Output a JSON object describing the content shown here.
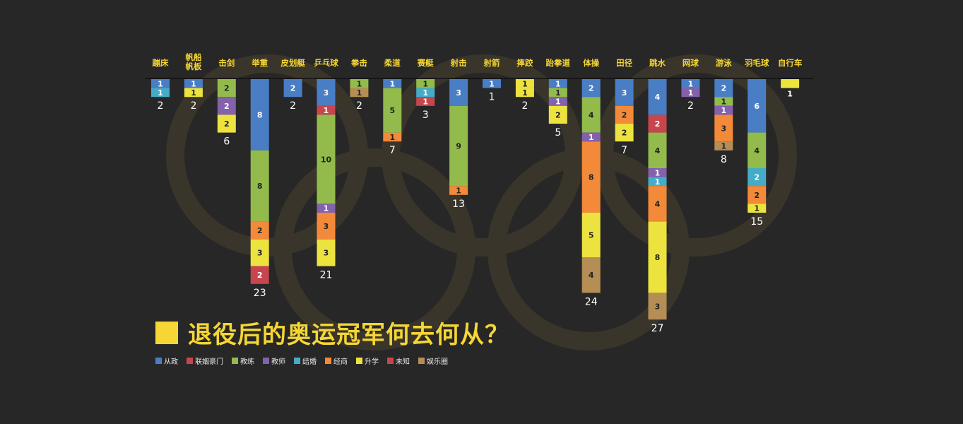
{
  "chart_data": {
    "type": "bar",
    "stacked": true,
    "orientation": "downward",
    "title": "退役后的奥运冠军何去何从？",
    "categories": [
      "蹦床",
      "帆船帆板",
      "击剑",
      "举重",
      "皮划艇",
      "乒乓球",
      "拳击",
      "柔道",
      "赛艇",
      "射击",
      "射箭",
      "摔跤",
      "跆拳道",
      "体操",
      "田径",
      "跳水",
      "网球",
      "游泳",
      "羽毛球",
      "自行车"
    ],
    "category_labels": [
      [
        "蹦床"
      ],
      [
        "帆船",
        "帆板"
      ],
      [
        "击剑"
      ],
      [
        "举重"
      ],
      [
        "皮划艇"
      ],
      [
        "乒乓球"
      ],
      [
        "拳击"
      ],
      [
        "柔道"
      ],
      [
        "赛艇"
      ],
      [
        "射击"
      ],
      [
        "射箭"
      ],
      [
        "摔跤"
      ],
      [
        "跆拳道"
      ],
      [
        "体操"
      ],
      [
        "田径"
      ],
      [
        "跳水"
      ],
      [
        "网球"
      ],
      [
        "游泳"
      ],
      [
        "羽毛球"
      ],
      [
        "自行车"
      ]
    ],
    "series": [
      {
        "name": "从政",
        "color": "#4a7ec4"
      },
      {
        "name": "联姻豪门",
        "color": "#c7464e"
      },
      {
        "name": "教练",
        "color": "#93bb4c"
      },
      {
        "name": "教师",
        "color": "#8460ad"
      },
      {
        "name": "结婚",
        "color": "#45acc7"
      },
      {
        "name": "经商",
        "color": "#f38a3a"
      },
      {
        "name": "升学",
        "color": "#ede33f"
      },
      {
        "name": "未知",
        "color": "#c7464e"
      },
      {
        "name": "娱乐圈",
        "color": "#b48e55"
      }
    ],
    "stacks": [
      {
        "segments": [
          {
            "s": 0,
            "v": 1
          },
          {
            "s": 4,
            "v": 1
          }
        ],
        "total": "2"
      },
      {
        "segments": [
          {
            "s": 0,
            "v": 1
          },
          {
            "s": 6,
            "v": 1
          }
        ],
        "total": "2"
      },
      {
        "segments": [
          {
            "s": 2,
            "v": 2
          },
          {
            "s": 3,
            "v": 2
          },
          {
            "s": 6,
            "v": 2
          }
        ],
        "total": "6"
      },
      {
        "segments": [
          {
            "s": 0,
            "v": 8
          },
          {
            "s": 2,
            "v": 8
          },
          {
            "s": 5,
            "v": 2
          },
          {
            "s": 6,
            "v": 3
          },
          {
            "s": 7,
            "v": 2
          }
        ],
        "total": "23"
      },
      {
        "segments": [
          {
            "s": 0,
            "v": 2
          }
        ],
        "total": "2"
      },
      {
        "segments": [
          {
            "s": 0,
            "v": 3
          },
          {
            "s": 1,
            "v": 1
          },
          {
            "s": 2,
            "v": 10
          },
          {
            "s": 3,
            "v": 1
          },
          {
            "s": 5,
            "v": 3
          },
          {
            "s": 6,
            "v": 3
          }
        ],
        "total": "21"
      },
      {
        "segments": [
          {
            "s": 2,
            "v": 1
          },
          {
            "s": 8,
            "v": 1
          }
        ],
        "total": "2"
      },
      {
        "segments": [
          {
            "s": 0,
            "v": 1
          },
          {
            "s": 2,
            "v": 5
          },
          {
            "s": 5,
            "v": 1
          }
        ],
        "total": "7"
      },
      {
        "segments": [
          {
            "s": 2,
            "v": 1
          },
          {
            "s": 4,
            "v": 1
          },
          {
            "s": 7,
            "v": 1
          }
        ],
        "total": "3"
      },
      {
        "segments": [
          {
            "s": 0,
            "v": 3
          },
          {
            "s": 2,
            "v": 9
          },
          {
            "s": 5,
            "v": 1
          }
        ],
        "total": "13"
      },
      {
        "segments": [
          {
            "s": 0,
            "v": 1
          }
        ],
        "total": "1"
      },
      {
        "segments": [
          {
            "s": 6,
            "v": 1
          },
          {
            "s": 6,
            "v": 1
          }
        ],
        "total": "2"
      },
      {
        "segments": [
          {
            "s": 0,
            "v": 1
          },
          {
            "s": 2,
            "v": 1
          },
          {
            "s": 3,
            "v": 1
          },
          {
            "s": 6,
            "v": 2
          }
        ],
        "total": "5"
      },
      {
        "segments": [
          {
            "s": 0,
            "v": 2
          },
          {
            "s": 2,
            "v": 4
          },
          {
            "s": 3,
            "v": 1
          },
          {
            "s": 5,
            "v": 8
          },
          {
            "s": 6,
            "v": 5
          },
          {
            "s": 8,
            "v": 4
          }
        ],
        "total": "24"
      },
      {
        "segments": [
          {
            "s": 0,
            "v": 3
          },
          {
            "s": 5,
            "v": 2
          },
          {
            "s": 6,
            "v": 2
          }
        ],
        "total": "7"
      },
      {
        "segments": [
          {
            "s": 0,
            "v": 4
          },
          {
            "s": 1,
            "v": 2
          },
          {
            "s": 2,
            "v": 4
          },
          {
            "s": 3,
            "v": 1
          },
          {
            "s": 4,
            "v": 1
          },
          {
            "s": 5,
            "v": 4
          },
          {
            "s": 6,
            "v": 8
          },
          {
            "s": 8,
            "v": 3
          }
        ],
        "total": "27"
      },
      {
        "segments": [
          {
            "s": 0,
            "v": 1
          },
          {
            "s": 3,
            "v": 1
          }
        ],
        "total": "2"
      },
      {
        "segments": [
          {
            "s": 0,
            "v": 2
          },
          {
            "s": 2,
            "v": 1
          },
          {
            "s": 3,
            "v": 1
          },
          {
            "s": 5,
            "v": 3
          },
          {
            "s": 8,
            "v": 1
          }
        ],
        "total": "8"
      },
      {
        "segments": [
          {
            "s": 0,
            "v": 6
          },
          {
            "s": 2,
            "v": 4
          },
          {
            "s": 4,
            "v": 2
          },
          {
            "s": 5,
            "v": 2
          },
          {
            "s": 6,
            "v": 1
          }
        ],
        "total": "15"
      },
      {
        "segments": [
          {
            "s": 6,
            "v": 1
          }
        ],
        "total": "1",
        "segment_labels_below": true
      }
    ],
    "legend": [
      "从政",
      "联姻豪门",
      "教练",
      "教师",
      "结婚",
      "经商",
      "升学",
      "未知",
      "娱乐圈"
    ],
    "background": "#272727",
    "accent": "#f5d635",
    "ring_color": "#3a352a",
    "legend_position": "bottom-left"
  }
}
